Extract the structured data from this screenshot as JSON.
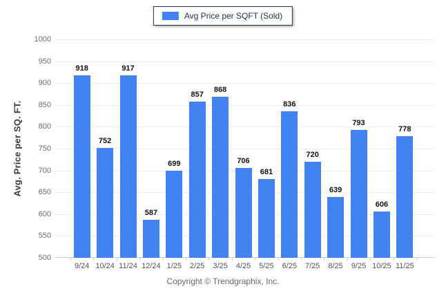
{
  "chart_data": {
    "type": "bar",
    "title": "",
    "legend": "Avg Price per SQFT (Sold)",
    "categories": [
      "9/24",
      "10/24",
      "11/24",
      "12/24",
      "1/25",
      "2/25",
      "3/25",
      "4/25",
      "5/25",
      "6/25",
      "7/25",
      "8/25",
      "9/25",
      "10/25",
      "11/25"
    ],
    "values": [
      918,
      752,
      917,
      587,
      699,
      857,
      868,
      706,
      681,
      836,
      720,
      639,
      793,
      606,
      778
    ],
    "xlabel": "",
    "ylabel": "Avg. Price per SQ. FT.",
    "ylim": [
      500,
      1000
    ],
    "ytick_step": 50,
    "grid": true,
    "legend_position": "top-center",
    "footer": "Copyright © Trendgraphix, Inc.",
    "colors": {
      "bar": "#4184F1",
      "legend_border": "#1B3150",
      "legend_text": "#17304F",
      "grid": "#EDEDED",
      "axis_line": "#C9C9C9",
      "value_label": "#111111",
      "y_tick_label": "#6E6A66",
      "x_tick_label": "#565350",
      "y_title": "#3A3A3A",
      "footer_text": "#666666"
    }
  }
}
